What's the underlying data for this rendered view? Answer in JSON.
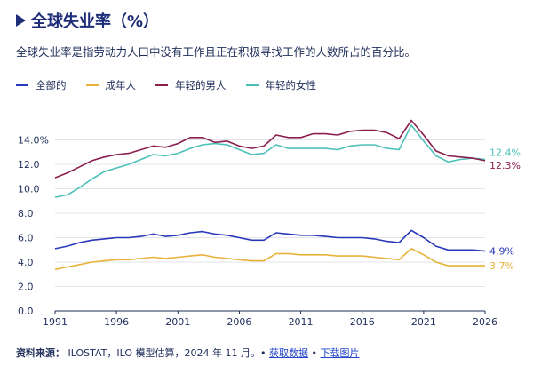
{
  "header": {
    "title": "全球失业率（%）",
    "subtitle": "全球失业率是指劳动力人口中没有工作且正在积极寻找工作的人数所占的百分比。"
  },
  "footer": {
    "source_label": "资料来源：",
    "source_text": "ILOSTAT，ILO 模型估算，2024 年 11 月。•",
    "get_data": "获取数据",
    "sep": "•",
    "download": "下载图片"
  },
  "chart_data": {
    "type": "line",
    "title": "全球失业率（%）",
    "xlabel": "",
    "ylabel": "",
    "ylim": [
      0,
      16
    ],
    "yticks": [
      0,
      2,
      4,
      6,
      8,
      10,
      12,
      14
    ],
    "ytick_labels": [
      "0.0",
      "2.0",
      "4.0",
      "6.0",
      "8.0",
      "10.0",
      "12.0",
      "14.0%"
    ],
    "xticks": [
      1991,
      1996,
      2001,
      2006,
      2011,
      2016,
      2021,
      2026
    ],
    "grid": true,
    "legend_position": "top-left",
    "x": [
      1991,
      1992,
      1993,
      1994,
      1995,
      1996,
      1997,
      1998,
      1999,
      2000,
      2001,
      2002,
      2003,
      2004,
      2005,
      2006,
      2007,
      2008,
      2009,
      2010,
      2011,
      2012,
      2013,
      2014,
      2015,
      2016,
      2017,
      2018,
      2019,
      2020,
      2021,
      2022,
      2023,
      2024,
      2025,
      2026
    ],
    "series": [
      {
        "name": "全部的",
        "color": "#2838b8",
        "end_label": "4.9%",
        "values": [
          5.1,
          5.3,
          5.6,
          5.8,
          5.9,
          6.0,
          6.0,
          6.1,
          6.3,
          6.1,
          6.2,
          6.4,
          6.5,
          6.3,
          6.2,
          6.0,
          5.8,
          5.8,
          6.4,
          6.3,
          6.2,
          6.2,
          6.1,
          6.0,
          6.0,
          6.0,
          5.9,
          5.7,
          5.6,
          6.6,
          6.0,
          5.3,
          5.0,
          5.0,
          5.0,
          4.9
        ]
      },
      {
        "name": "成年人",
        "color": "#e8b23a",
        "end_label": "3.7%",
        "values": [
          3.4,
          3.6,
          3.8,
          4.0,
          4.1,
          4.2,
          4.2,
          4.3,
          4.4,
          4.3,
          4.4,
          4.5,
          4.6,
          4.4,
          4.3,
          4.2,
          4.1,
          4.1,
          4.7,
          4.7,
          4.6,
          4.6,
          4.6,
          4.5,
          4.5,
          4.5,
          4.4,
          4.3,
          4.2,
          5.1,
          4.6,
          4.0,
          3.7,
          3.7,
          3.7,
          3.7
        ]
      },
      {
        "name": "年轻的男人",
        "color": "#8a1f4e",
        "end_label": "12.3%",
        "values": [
          10.9,
          11.3,
          11.8,
          12.3,
          12.6,
          12.8,
          12.9,
          13.2,
          13.5,
          13.4,
          13.7,
          14.2,
          14.2,
          13.8,
          13.9,
          13.5,
          13.3,
          13.5,
          14.4,
          14.2,
          14.2,
          14.5,
          14.5,
          14.4,
          14.7,
          14.8,
          14.8,
          14.6,
          14.1,
          15.6,
          14.4,
          13.1,
          12.7,
          12.6,
          12.5,
          12.3
        ]
      },
      {
        "name": "年轻的女性",
        "color": "#4cc0b8",
        "end_label": "12.4%",
        "values": [
          9.3,
          9.5,
          10.1,
          10.8,
          11.4,
          11.7,
          12.0,
          12.4,
          12.8,
          12.7,
          12.9,
          13.3,
          13.6,
          13.7,
          13.6,
          13.2,
          12.8,
          12.9,
          13.6,
          13.3,
          13.3,
          13.3,
          13.3,
          13.2,
          13.5,
          13.6,
          13.6,
          13.3,
          13.2,
          15.2,
          13.9,
          12.7,
          12.2,
          12.4,
          12.5,
          12.4
        ]
      }
    ]
  }
}
